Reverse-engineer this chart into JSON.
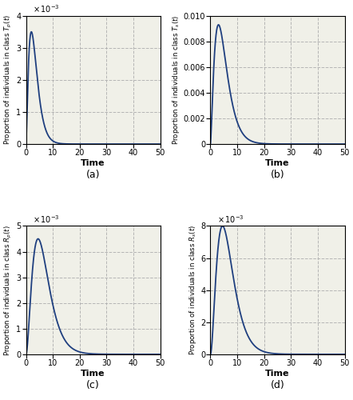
{
  "t_max": 50,
  "t_points": 2000,
  "line_color": "#1f3f7f",
  "line_width": 1.3,
  "background_color": "#f0f0e8",
  "grid_color": "#b0b0b0",
  "xlabel": "Time",
  "label_a": "(a)",
  "label_b": "(b)",
  "label_c": "(c)",
  "label_d": "(d)",
  "subplot_a": {
    "peak_time": 2.0,
    "n": 1.5,
    "peak_val": 0.0035,
    "ylim": [
      0,
      0.004
    ],
    "ytick_vals": [
      0,
      1,
      2,
      3,
      4
    ],
    "ytick_locs": [
      0,
      0.001,
      0.002,
      0.003,
      0.004
    ],
    "xticks": [
      0,
      10,
      20,
      30,
      40,
      50
    ],
    "scale_exp": -3,
    "ylabel_class": "T",
    "ylabel_sub": "p"
  },
  "subplot_b": {
    "peak_time": 3.0,
    "n": 1.5,
    "peak_val": 0.0093,
    "ylim": [
      0,
      0.01
    ],
    "ytick_locs": [
      0,
      0.002,
      0.004,
      0.006,
      0.008,
      0.01
    ],
    "ytick_vals": [
      0,
      0.002,
      0.004,
      0.006,
      0.008,
      0.01
    ],
    "xticks": [
      0,
      10,
      20,
      30,
      40,
      50
    ],
    "scale_exp": null,
    "ylabel_class": "T",
    "ylabel_sub": "s"
  },
  "subplot_c": {
    "peak_time": 4.5,
    "n": 2.0,
    "peak_val": 0.0045,
    "ylim": [
      0,
      0.005
    ],
    "ytick_vals": [
      0,
      1,
      2,
      3,
      4,
      5
    ],
    "ytick_locs": [
      0,
      0.001,
      0.002,
      0.003,
      0.004,
      0.005
    ],
    "xticks": [
      0,
      10,
      20,
      30,
      40,
      50
    ],
    "scale_exp": -3,
    "ylabel_class": "R",
    "ylabel_sub": "p"
  },
  "subplot_d": {
    "peak_time": 4.5,
    "n": 2.0,
    "peak_val": 0.008,
    "ylim": [
      0,
      0.008
    ],
    "ytick_vals": [
      0,
      2,
      4,
      6,
      8
    ],
    "ytick_locs": [
      0,
      0.002,
      0.004,
      0.006,
      0.008
    ],
    "xticks": [
      0,
      10,
      20,
      30,
      40,
      50
    ],
    "scale_exp": -3,
    "ylabel_class": "R",
    "ylabel_sub": "s"
  }
}
